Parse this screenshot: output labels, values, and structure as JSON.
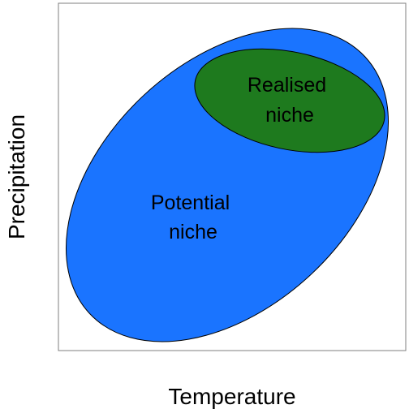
{
  "diagram": {
    "x_axis_label": "Temperature",
    "y_axis_label": "Precipitation",
    "potential_niche": {
      "line1": "Potential",
      "line2": "niche",
      "color": "#1A74FF"
    },
    "realised_niche": {
      "line1": "Realised",
      "line2": "niche",
      "color": "#1E7A1E"
    },
    "outline_color": "#000000",
    "frame_color": "#7F7F7F"
  }
}
